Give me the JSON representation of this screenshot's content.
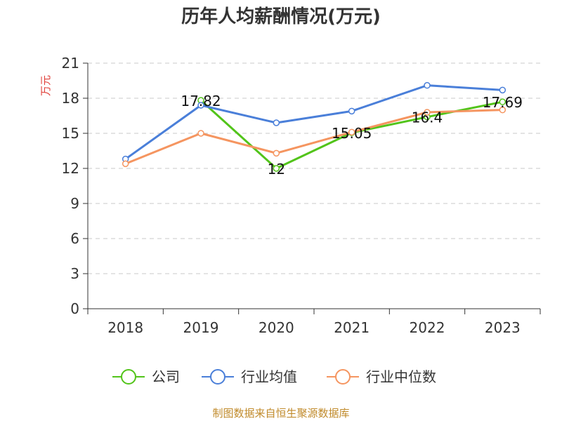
{
  "chart_data": {
    "type": "line",
    "title": "历年人均薪酬情况(万元)",
    "ylabel": "万元",
    "xlabel": "",
    "categories": [
      "2018",
      "2019",
      "2020",
      "2021",
      "2022",
      "2023"
    ],
    "yticks": [
      "0",
      "3",
      "6",
      "9",
      "12",
      "15",
      "18",
      "21"
    ],
    "ylim": [
      0,
      21
    ],
    "grid": true,
    "legend_position": "bottom",
    "series": [
      {
        "name": "公司",
        "color": "#52c41a",
        "values": [
          null,
          17.82,
          12,
          15.05,
          16.4,
          17.69
        ],
        "labels": [
          null,
          "17.82",
          "12",
          "15.05",
          "16.4",
          "17.69"
        ]
      },
      {
        "name": "行业均值",
        "color": "#4a7fd9",
        "values": [
          12.8,
          17.4,
          15.9,
          16.9,
          19.1,
          18.7
        ],
        "labels": [
          null,
          null,
          null,
          null,
          null,
          null
        ]
      },
      {
        "name": "行业中位数",
        "color": "#f59560",
        "values": [
          12.4,
          15.0,
          13.3,
          15.1,
          16.8,
          17.0
        ],
        "labels": [
          null,
          null,
          null,
          null,
          null,
          null
        ]
      }
    ]
  },
  "source": "制图数据来自恒生聚源数据库"
}
